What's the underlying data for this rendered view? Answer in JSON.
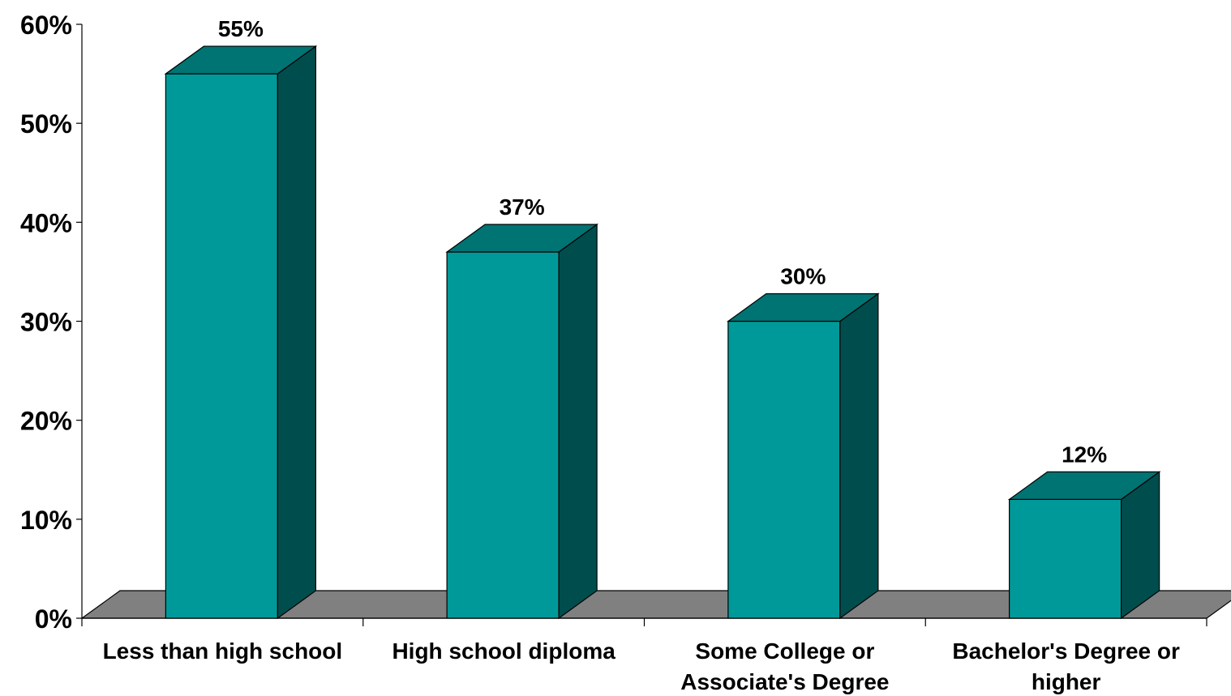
{
  "chart_data": {
    "type": "bar",
    "style": "3d-column",
    "categories": [
      [
        "Less than high school"
      ],
      [
        "High school diploma"
      ],
      [
        "Some College or",
        "Associate's Degree"
      ],
      [
        "Bachelor's Degree or",
        "higher"
      ]
    ],
    "values": [
      55,
      37,
      30,
      12
    ],
    "data_labels": [
      "55%",
      "37%",
      "30%",
      "12%"
    ],
    "y_ticks": [
      {
        "value": 0,
        "label": "0%"
      },
      {
        "value": 10,
        "label": "10%"
      },
      {
        "value": 20,
        "label": "20%"
      },
      {
        "value": 30,
        "label": "30%"
      },
      {
        "value": 40,
        "label": "40%"
      },
      {
        "value": 50,
        "label": "50%"
      },
      {
        "value": 60,
        "label": "60%"
      }
    ],
    "ylim": [
      0,
      60
    ],
    "grid": false,
    "legend": "none",
    "colors": {
      "bar_front": "#009999",
      "bar_top": "#007373",
      "bar_side": "#004D4D",
      "floor": "#808080",
      "outline": "#000000"
    }
  }
}
